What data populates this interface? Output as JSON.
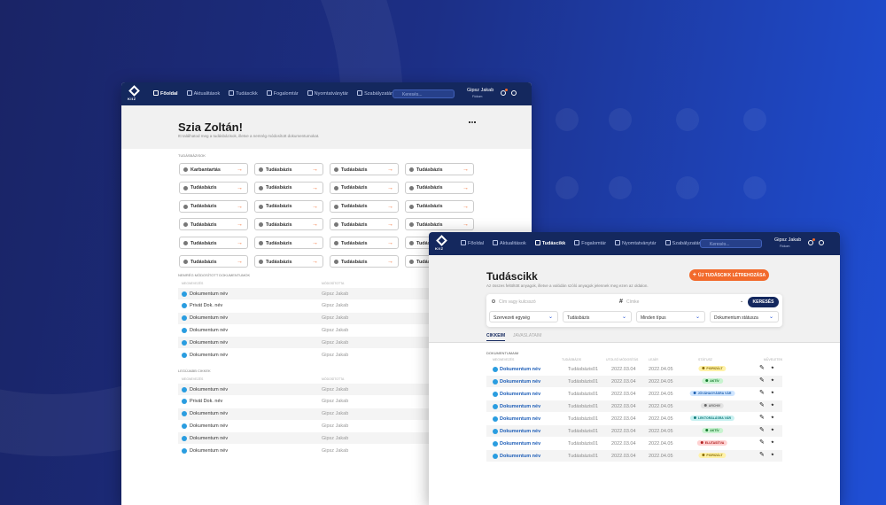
{
  "back_window": {
    "nav": {
      "logo": "KIIZ",
      "items": [
        "Főoldal",
        "Aktualitások",
        "Tudáscikk",
        "Fogalomtár",
        "Nyomtatványtár",
        "Szabályzatár"
      ],
      "search_placeholder": "Keresés...",
      "user_name": "Gipsz Jakab",
      "user_role": "Fiókom"
    },
    "title": "Szia Zoltán!",
    "subtitle": "Itt találhatod meg a tudásbázisok, illetve a nemrég módosított dokumentumokat.",
    "knowledge_bases": {
      "label": "TUDÁSBÁZISOK",
      "items": [
        "Karbantartás",
        "Tudásbázis",
        "Tudásbázis",
        "Tudásbázis",
        "Tudásbázis",
        "Tudásbázis",
        "Tudásbázis",
        "Tudásbázis",
        "Tudásbázis",
        "Tudásbázis",
        "Tudásbázis",
        "Tudásbázis",
        "Tudásbázis",
        "Tudásbázis",
        "Tudásbázis",
        "Tudásbázis",
        "Tudásbázis",
        "Tudásbázis",
        "Tudásbázis",
        "Tudásbázis",
        "Tudásbázis",
        "Tudásbázis",
        "Tudásbázis",
        "Tudásbázis"
      ]
    },
    "recent_docs": {
      "label": "NEMRÉG MÓDOSÍTOTT DOKUMENTUMOK",
      "columns": [
        "MEGNEVEZÉS",
        "MÓDOSÍTOTTA"
      ],
      "rows": [
        [
          "Dokumentum név",
          "Gipsz Jakab"
        ],
        [
          "Privát Dok. név",
          "Gipsz Jakab"
        ],
        [
          "Dokumentum név",
          "Gipsz Jakab"
        ],
        [
          "Dokumentum név",
          "Gipsz Jakab"
        ],
        [
          "Dokumentum név",
          "Gipsz Jakab"
        ],
        [
          "Dokumentum név",
          "Gipsz Jakab"
        ]
      ]
    },
    "latest_articles": {
      "label": "LEGÚJABB CIKKEK",
      "columns": [
        "MEGNEVEZÉS",
        "MÓDOSÍTOTTA"
      ],
      "rows": [
        [
          "Dokumentum név",
          "Gipsz Jakab"
        ],
        [
          "Privát Dok. név",
          "Gipsz Jakab"
        ],
        [
          "Dokumentum név",
          "Gipsz Jakab"
        ],
        [
          "Dokumentum név",
          "Gipsz Jakab"
        ],
        [
          "Dokumentum név",
          "Gipsz Jakab"
        ],
        [
          "Dokumentum név",
          "Gipsz Jakab"
        ]
      ]
    }
  },
  "front_window": {
    "nav": {
      "logo": "KIIZ",
      "items": [
        "Főoldal",
        "Aktualitások",
        "Tudáscikk",
        "Fogalomtár",
        "Nyomtatványtár",
        "Szabályzatár"
      ],
      "search_placeholder": "Keresés...",
      "user_name": "Gipsz Jakab",
      "user_role": "Fiókom"
    },
    "title": "Tudáscikk",
    "subtitle": "Az összes feltöltött anyagok, illetve a valódán szóló anyagok jelennek meg ezen az oldalon.",
    "create_button": "ÚJ TUDÁSCIKK LÉTREHOZÁSA",
    "search": {
      "keyword_placeholder": "Cím vagy kulcsszó",
      "tag_placeholder": "Címke",
      "button": "KERESÉS",
      "filters": [
        "Szervezeti egység",
        "Tudásbázis",
        "Minden típus",
        "Dokumentum státusza"
      ]
    },
    "tabs": [
      "CIKKEIM",
      "JAVASLATAIM"
    ],
    "section_label": "DOKUMENTUMAIM",
    "columns": [
      "MEGNEVEZÉS",
      "TUDÁSBÁZIS",
      "UTOLSÓ MÓDOSÍTÁS",
      "LEJÁR",
      "STÁTUSZ",
      "MŰVELETEK"
    ],
    "rows": [
      [
        "Dokumentum név",
        "Tudásbázis01",
        "2022.03.04",
        "2022.04.05",
        "PIORIZÁLT"
      ],
      [
        "Dokumentum név",
        "Tudásbázis01",
        "2022.03.04",
        "2022.04.05",
        "AKTÍV"
      ],
      [
        "Dokumentum név",
        "Tudásbázis01",
        "2022.03.04",
        "2022.04.05",
        "JÓVÁHAGYÁSRA VÁR"
      ],
      [
        "Dokumentum név",
        "Tudásbázis01",
        "2022.03.04",
        "2022.04.05",
        "ARCHIV"
      ],
      [
        "Dokumentum név",
        "Tudásbázis01",
        "2022.03.04",
        "2022.04.05",
        "LEKTORÁLÁSRA VÁR"
      ],
      [
        "Dokumentum név",
        "Tudásbázis01",
        "2022.03.04",
        "2022.04.05",
        "AKTÍV"
      ],
      [
        "Dokumentum név",
        "Tudásbázis01",
        "2022.03.04",
        "2022.04.05",
        "ELUTASÍTVA"
      ],
      [
        "Dokumentum név",
        "Tudásbázis01",
        "2022.03.04",
        "2022.04.05",
        "PIORIZÁLT"
      ]
    ]
  }
}
